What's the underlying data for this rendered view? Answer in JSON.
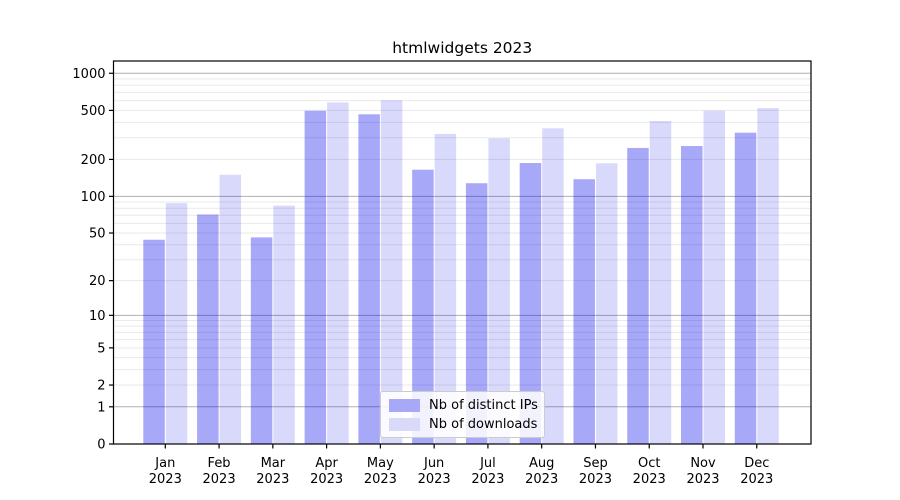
{
  "chart_data": {
    "type": "bar",
    "title": "htmlwidgets 2023",
    "xlabel": "",
    "ylabel": "",
    "yscale": "log1p",
    "ylim": [
      0,
      1260
    ],
    "grid": "horizontal-log-minor",
    "legend_position": "bottom-center",
    "background_color": "#ffffff",
    "axis_color": "#000000",
    "major_grid_color": "#b0b0b0",
    "minor_grid_color": "#e9e9e9",
    "yticks": [
      1000,
      500,
      200,
      100,
      50,
      20,
      10,
      5,
      2,
      1,
      0
    ],
    "months": [
      "Jan",
      "Feb",
      "Mar",
      "Apr",
      "May",
      "Jun",
      "Jul",
      "Aug",
      "Sep",
      "Oct",
      "Nov",
      "Dec"
    ],
    "year": "2023",
    "series": [
      {
        "key": "distinct-ips",
        "name": "Nb of distinct IPs",
        "color": "#a8a8f8",
        "fill": "rgba(0,0,238,0.34)",
        "values": [
          44,
          71,
          46,
          497,
          465,
          165,
          128,
          187,
          138,
          248,
          257,
          330
        ]
      },
      {
        "key": "downloads",
        "name": "Nb of downloads",
        "color": "#d9d9f9",
        "fill": "rgba(0,0,238,0.15)",
        "values": [
          88,
          150,
          84,
          580,
          604,
          322,
          297,
          358,
          186,
          410,
          497,
          522
        ]
      }
    ]
  }
}
